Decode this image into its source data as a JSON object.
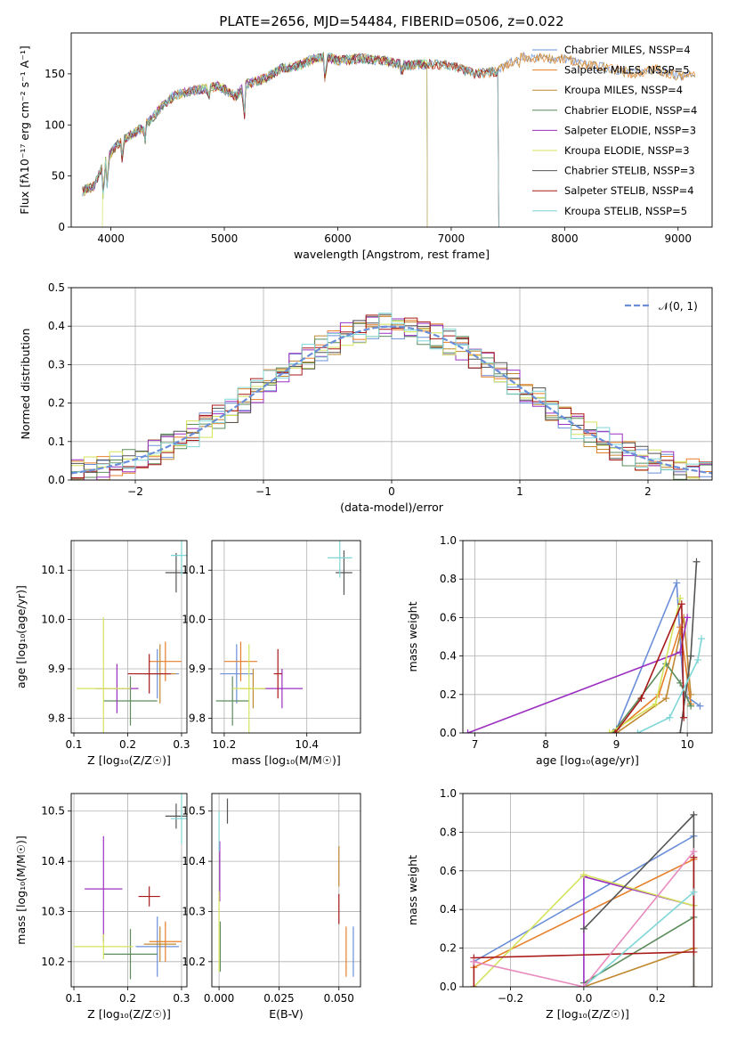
{
  "figure": {
    "title": "PLATE=2656, MJD=54484, FIBERID=0506, z=0.022",
    "model_colors": [
      "#6a8fd8",
      "#e67f2a",
      "#c08830",
      "#5c8c5c",
      "#9b30c0",
      "#d4e35a",
      "#555555",
      "#a81a1a",
      "#7fd6d6"
    ],
    "normal_color": "#6a8fd8"
  },
  "chart_data": [
    {
      "type": "line",
      "title": "PLATE=2656, MJD=54484, FIBERID=0506, z=0.022",
      "xlabel": "wavelength [Angstrom, rest frame]",
      "ylabel": "Flux [fλ10⁻¹⁷ erg cm⁻² s⁻¹ A⁻¹]",
      "xlim": [
        3650,
        9300
      ],
      "ylim": [
        0,
        190
      ],
      "xticks": [
        "4000",
        "5000",
        "6000",
        "7000",
        "8000",
        "9000"
      ],
      "yticks": [
        "0",
        "50",
        "100",
        "150"
      ],
      "legend_position": "top-right",
      "series": [
        {
          "name": "Chabrier MILES, NSSP=4",
          "end": 9160
        },
        {
          "name": "Salpeter MILES, NSSP=5",
          "end": 9160
        },
        {
          "name": "Kroupa MILES, NSSP=4",
          "end": 9160
        },
        {
          "name": "Chabrier ELODIE, NSSP=4",
          "end": 6790
        },
        {
          "name": "Salpeter ELODIE, NSSP=3",
          "end": 6790
        },
        {
          "name": "Kroupa ELODIE, NSSP=3",
          "end": 6790
        },
        {
          "name": "Chabrier STELIB, NSSP=3",
          "end": 7420
        },
        {
          "name": "Salpeter STELIB, NSSP=4",
          "end": 7420
        },
        {
          "name": "Kroupa STELIB, NSSP=5",
          "end": 7420
        }
      ],
      "continuum": [
        [
          3750,
          35
        ],
        [
          3850,
          40
        ],
        [
          3950,
          65
        ],
        [
          4050,
          80
        ],
        [
          4150,
          88
        ],
        [
          4250,
          95
        ],
        [
          4350,
          105
        ],
        [
          4450,
          118
        ],
        [
          4550,
          128
        ],
        [
          4650,
          132
        ],
        [
          4800,
          135
        ],
        [
          4950,
          138
        ],
        [
          5100,
          128
        ],
        [
          5200,
          140
        ],
        [
          5350,
          145
        ],
        [
          5500,
          155
        ],
        [
          5650,
          158
        ],
        [
          5800,
          165
        ],
        [
          5900,
          167
        ],
        [
          6000,
          163
        ],
        [
          6200,
          165
        ],
        [
          6400,
          163
        ],
        [
          6600,
          158
        ],
        [
          6800,
          160
        ],
        [
          7000,
          158
        ],
        [
          7200,
          150
        ],
        [
          7400,
          152
        ],
        [
          7600,
          167
        ],
        [
          7800,
          165
        ],
        [
          8000,
          165
        ],
        [
          8200,
          158
        ],
        [
          8400,
          156
        ],
        [
          8600,
          150
        ],
        [
          8800,
          155
        ],
        [
          9000,
          148
        ],
        [
          9160,
          150
        ]
      ]
    },
    {
      "type": "area",
      "xlabel": "(data-model)/error",
      "ylabel": "Normed distribution",
      "xlim": [
        -2.5,
        2.5
      ],
      "ylim": [
        0,
        0.5
      ],
      "xticks": [
        "−2",
        "−1",
        "0",
        "1",
        "2"
      ],
      "yticks": [
        "0.0",
        "0.1",
        "0.2",
        "0.3",
        "0.4",
        "0.5"
      ],
      "bin_width": 0.1,
      "legend": [
        "𝒩(0, 1)"
      ],
      "legend_position": "top-right",
      "reference_curve": "standard normal, mean 0, sigma 1"
    },
    {
      "type": "scatter",
      "xlabel": "Z [log₁₀(Z/Z☉)]",
      "ylabel": "age  [log₁₀(age/yr)]",
      "xlim": [
        0.095,
        0.31
      ],
      "ylim": [
        9.77,
        10.16
      ],
      "xticks": [
        "0.1",
        "0.2",
        "0.3"
      ],
      "yticks": [
        "9.8",
        "9.9",
        "10.0",
        "10.1"
      ],
      "points": [
        {
          "x": 0.255,
          "y": 9.89,
          "xerr": 0.04,
          "yerr": 0.05
        },
        {
          "x": 0.27,
          "y": 9.915,
          "xerr": 0.03,
          "yerr": 0.04
        },
        {
          "x": 0.26,
          "y": 9.89,
          "xerr": 0.03,
          "yerr": 0.06
        },
        {
          "x": 0.205,
          "y": 9.835,
          "xerr": 0.05,
          "yerr": 0.05
        },
        {
          "x": 0.18,
          "y": 9.86,
          "xerr": 0.04,
          "yerr": 0.05
        },
        {
          "x": 0.155,
          "y": 9.86,
          "xerr": 0.05,
          "yerr": 0.145
        },
        {
          "x": 0.29,
          "y": 10.095,
          "xerr": 0.02,
          "yerr": 0.04
        },
        {
          "x": 0.24,
          "y": 9.89,
          "xerr": 0.04,
          "yerr": 0.04
        },
        {
          "x": 0.3,
          "y": 10.13,
          "xerr": 0.02,
          "yerr": 0.04
        }
      ]
    },
    {
      "type": "scatter",
      "xlabel": "mass [log₁₀(M/M☉)]",
      "ylabel": "",
      "xlim": [
        10.17,
        10.53
      ],
      "ylim": [
        9.77,
        10.16
      ],
      "xticks": [
        "10.2",
        "10.4"
      ],
      "yticks": [
        "9.8",
        "9.9",
        "10.0",
        "10.1"
      ],
      "points": [
        {
          "x": 10.23,
          "y": 9.89,
          "xerr": 0.04,
          "yerr": 0.06
        },
        {
          "x": 10.24,
          "y": 9.915,
          "xerr": 0.04,
          "yerr": 0.04
        },
        {
          "x": 10.27,
          "y": 9.86,
          "xerr": 0.03,
          "yerr": 0.04
        },
        {
          "x": 10.22,
          "y": 9.835,
          "xerr": 0.04,
          "yerr": 0.05
        },
        {
          "x": 10.34,
          "y": 9.86,
          "xerr": 0.05,
          "yerr": 0.04
        },
        {
          "x": 10.26,
          "y": 9.86,
          "xerr": 0.04,
          "yerr": 0.09
        },
        {
          "x": 10.49,
          "y": 10.095,
          "xerr": 0.02,
          "yerr": 0.045
        },
        {
          "x": 10.33,
          "y": 9.89,
          "xerr": 0.01,
          "yerr": 0.05
        },
        {
          "x": 10.48,
          "y": 10.125,
          "xerr": 0.03,
          "yerr": 0.04
        }
      ]
    },
    {
      "type": "line",
      "xlabel": "age  [log₁₀(age/yr)]",
      "ylabel": "mass weight",
      "xlim": [
        6.83,
        10.35
      ],
      "ylim": [
        0,
        1
      ],
      "xticks": [
        "7",
        "8",
        "9",
        "10"
      ],
      "yticks": [
        "0.0",
        "0.2",
        "0.4",
        "0.6",
        "0.8",
        "1.0"
      ],
      "series": [
        {
          "x": [
            9.0,
            9.85,
            9.95,
            10.18
          ],
          "y": [
            0.02,
            0.78,
            0.2,
            0.14
          ]
        },
        {
          "x": [
            8.95,
            9.6,
            9.9,
            10.05
          ],
          "y": [
            0.0,
            0.2,
            0.55,
            0.15
          ]
        },
        {
          "x": [
            9.0,
            9.7,
            9.95,
            10.05
          ],
          "y": [
            0.0,
            0.18,
            0.6,
            0.2
          ]
        },
        {
          "x": [
            8.95,
            9.7,
            9.9,
            10.05
          ],
          "y": [
            0.0,
            0.36,
            0.26,
            0.14
          ]
        },
        {
          "x": [
            6.9,
            9.9,
            10.0
          ],
          "y": [
            0.0,
            0.42,
            0.6
          ]
        },
        {
          "x": [
            8.9,
            9.55,
            9.9
          ],
          "y": [
            0.0,
            0.15,
            0.7
          ]
        },
        {
          "x": [
            9.9,
            10.05,
            10.13
          ],
          "y": [
            0.0,
            0.4,
            0.89
          ]
        },
        {
          "x": [
            8.98,
            9.35,
            9.92,
            9.95
          ],
          "y": [
            0.0,
            0.18,
            0.67,
            0.08
          ]
        },
        {
          "x": [
            9.3,
            9.75,
            10.15,
            10.2
          ],
          "y": [
            0.0,
            0.08,
            0.38,
            0.49
          ]
        }
      ]
    },
    {
      "type": "scatter",
      "xlabel": "Z [log₁₀(Z/Z☉)]",
      "ylabel": "mass [log₁₀(M/M☉)]",
      "xlim": [
        0.095,
        0.31
      ],
      "ylim": [
        10.15,
        10.535
      ],
      "xticks": [
        "0.1",
        "0.2",
        "0.3"
      ],
      "yticks": [
        "10.2",
        "10.3",
        "10.4",
        "10.5"
      ],
      "points": [
        {
          "x": 0.255,
          "y": 10.23,
          "xerr": 0.04,
          "yerr": 0.06
        },
        {
          "x": 0.27,
          "y": 10.24,
          "xerr": 0.03,
          "yerr": 0.04
        },
        {
          "x": 0.26,
          "y": 10.235,
          "xerr": 0.03,
          "yerr": 0.035
        },
        {
          "x": 0.205,
          "y": 10.215,
          "xerr": 0.05,
          "yerr": 0.05
        },
        {
          "x": 0.155,
          "y": 10.345,
          "xerr": 0.035,
          "yerr": 0.105
        },
        {
          "x": 0.155,
          "y": 10.23,
          "xerr": 0.055,
          "yerr": 0.025
        },
        {
          "x": 0.29,
          "y": 10.49,
          "xerr": 0.02,
          "yerr": 0.025
        },
        {
          "x": 0.24,
          "y": 10.33,
          "xerr": 0.02,
          "yerr": 0.02
        },
        {
          "x": 0.3,
          "y": 10.485,
          "xerr": 0.02,
          "yerr": 0.05
        }
      ]
    },
    {
      "type": "scatter",
      "xlabel": "E(B-V)",
      "ylabel": "",
      "xlim": [
        -0.003,
        0.059
      ],
      "ylim": [
        10.15,
        10.535
      ],
      "xticks": [
        "0.000",
        "0.025",
        "0.050"
      ],
      "yticks": [
        "10.2",
        "10.3",
        "10.4",
        "10.5"
      ],
      "points": [
        {
          "x": 0.056,
          "y": 10.22,
          "xerr": 0,
          "yerr": 0.05
        },
        {
          "x": 0.053,
          "y": 10.22,
          "xerr": 0,
          "yerr": 0.05
        },
        {
          "x": 0.05,
          "y": 10.39,
          "xerr": 0,
          "yerr": 0.04
        },
        {
          "x": 0.0005,
          "y": 10.23,
          "xerr": 0,
          "yerr": 0.05
        },
        {
          "x": 0.0003,
          "y": 10.38,
          "xerr": 0,
          "yerr": 0.06
        },
        {
          "x": 0.0,
          "y": 10.26,
          "xerr": 0,
          "yerr": 0.08
        },
        {
          "x": 0.0035,
          "y": 10.5,
          "xerr": 0,
          "yerr": 0.025
        },
        {
          "x": 0.05,
          "y": 10.305,
          "xerr": 0,
          "yerr": 0.03
        },
        {
          "x": 0.0,
          "y": 10.46,
          "xerr": 0,
          "yerr": 0.04
        }
      ]
    },
    {
      "type": "line",
      "xlabel": "Z [log₁₀(Z/Z☉)]",
      "ylabel": "mass weight",
      "xlim": [
        -0.33,
        0.35
      ],
      "ylim": [
        0,
        1
      ],
      "xticks": [
        "−0.2",
        "0.0",
        "0.2"
      ],
      "yticks": [
        "0.0",
        "0.2",
        "0.4",
        "0.6",
        "0.8",
        "1.0"
      ],
      "series": [
        {
          "x": [
            -0.3,
            0.3
          ],
          "y": [
            0.13,
            0.78
          ]
        },
        {
          "x": [
            -0.3,
            0.3
          ],
          "y": [
            0.1,
            0.66
          ]
        },
        {
          "x": [
            0.0,
            0.3,
            0.3
          ],
          "y": [
            0.0,
            0.2,
            0.0
          ]
        },
        {
          "x": [
            0.0,
            0.3
          ],
          "y": [
            0.02,
            0.36
          ]
        },
        {
          "x": [
            0.0,
            0.0,
            0.3
          ],
          "y": [
            0.0,
            0.57,
            0.42
          ]
        },
        {
          "x": [
            -0.3,
            0.0,
            0.3
          ],
          "y": [
            0.0,
            0.58,
            0.42
          ]
        },
        {
          "x": [
            0.0,
            0.3,
            0.3
          ],
          "y": [
            0.3,
            0.89,
            0.0
          ]
        },
        {
          "x": [
            -0.3,
            -0.3,
            0.3,
            0.3
          ],
          "y": [
            0.0,
            0.15,
            0.18,
            0.67
          ]
        },
        {
          "x": [
            0.0,
            0.3
          ],
          "y": [
            0.0,
            0.49
          ]
        }
      ],
      "extra": {
        "x": [
          -0.3,
          0.0,
          0.3
        ],
        "y": [
          0.13,
          0.0,
          0.7
        ]
      }
    }
  ]
}
